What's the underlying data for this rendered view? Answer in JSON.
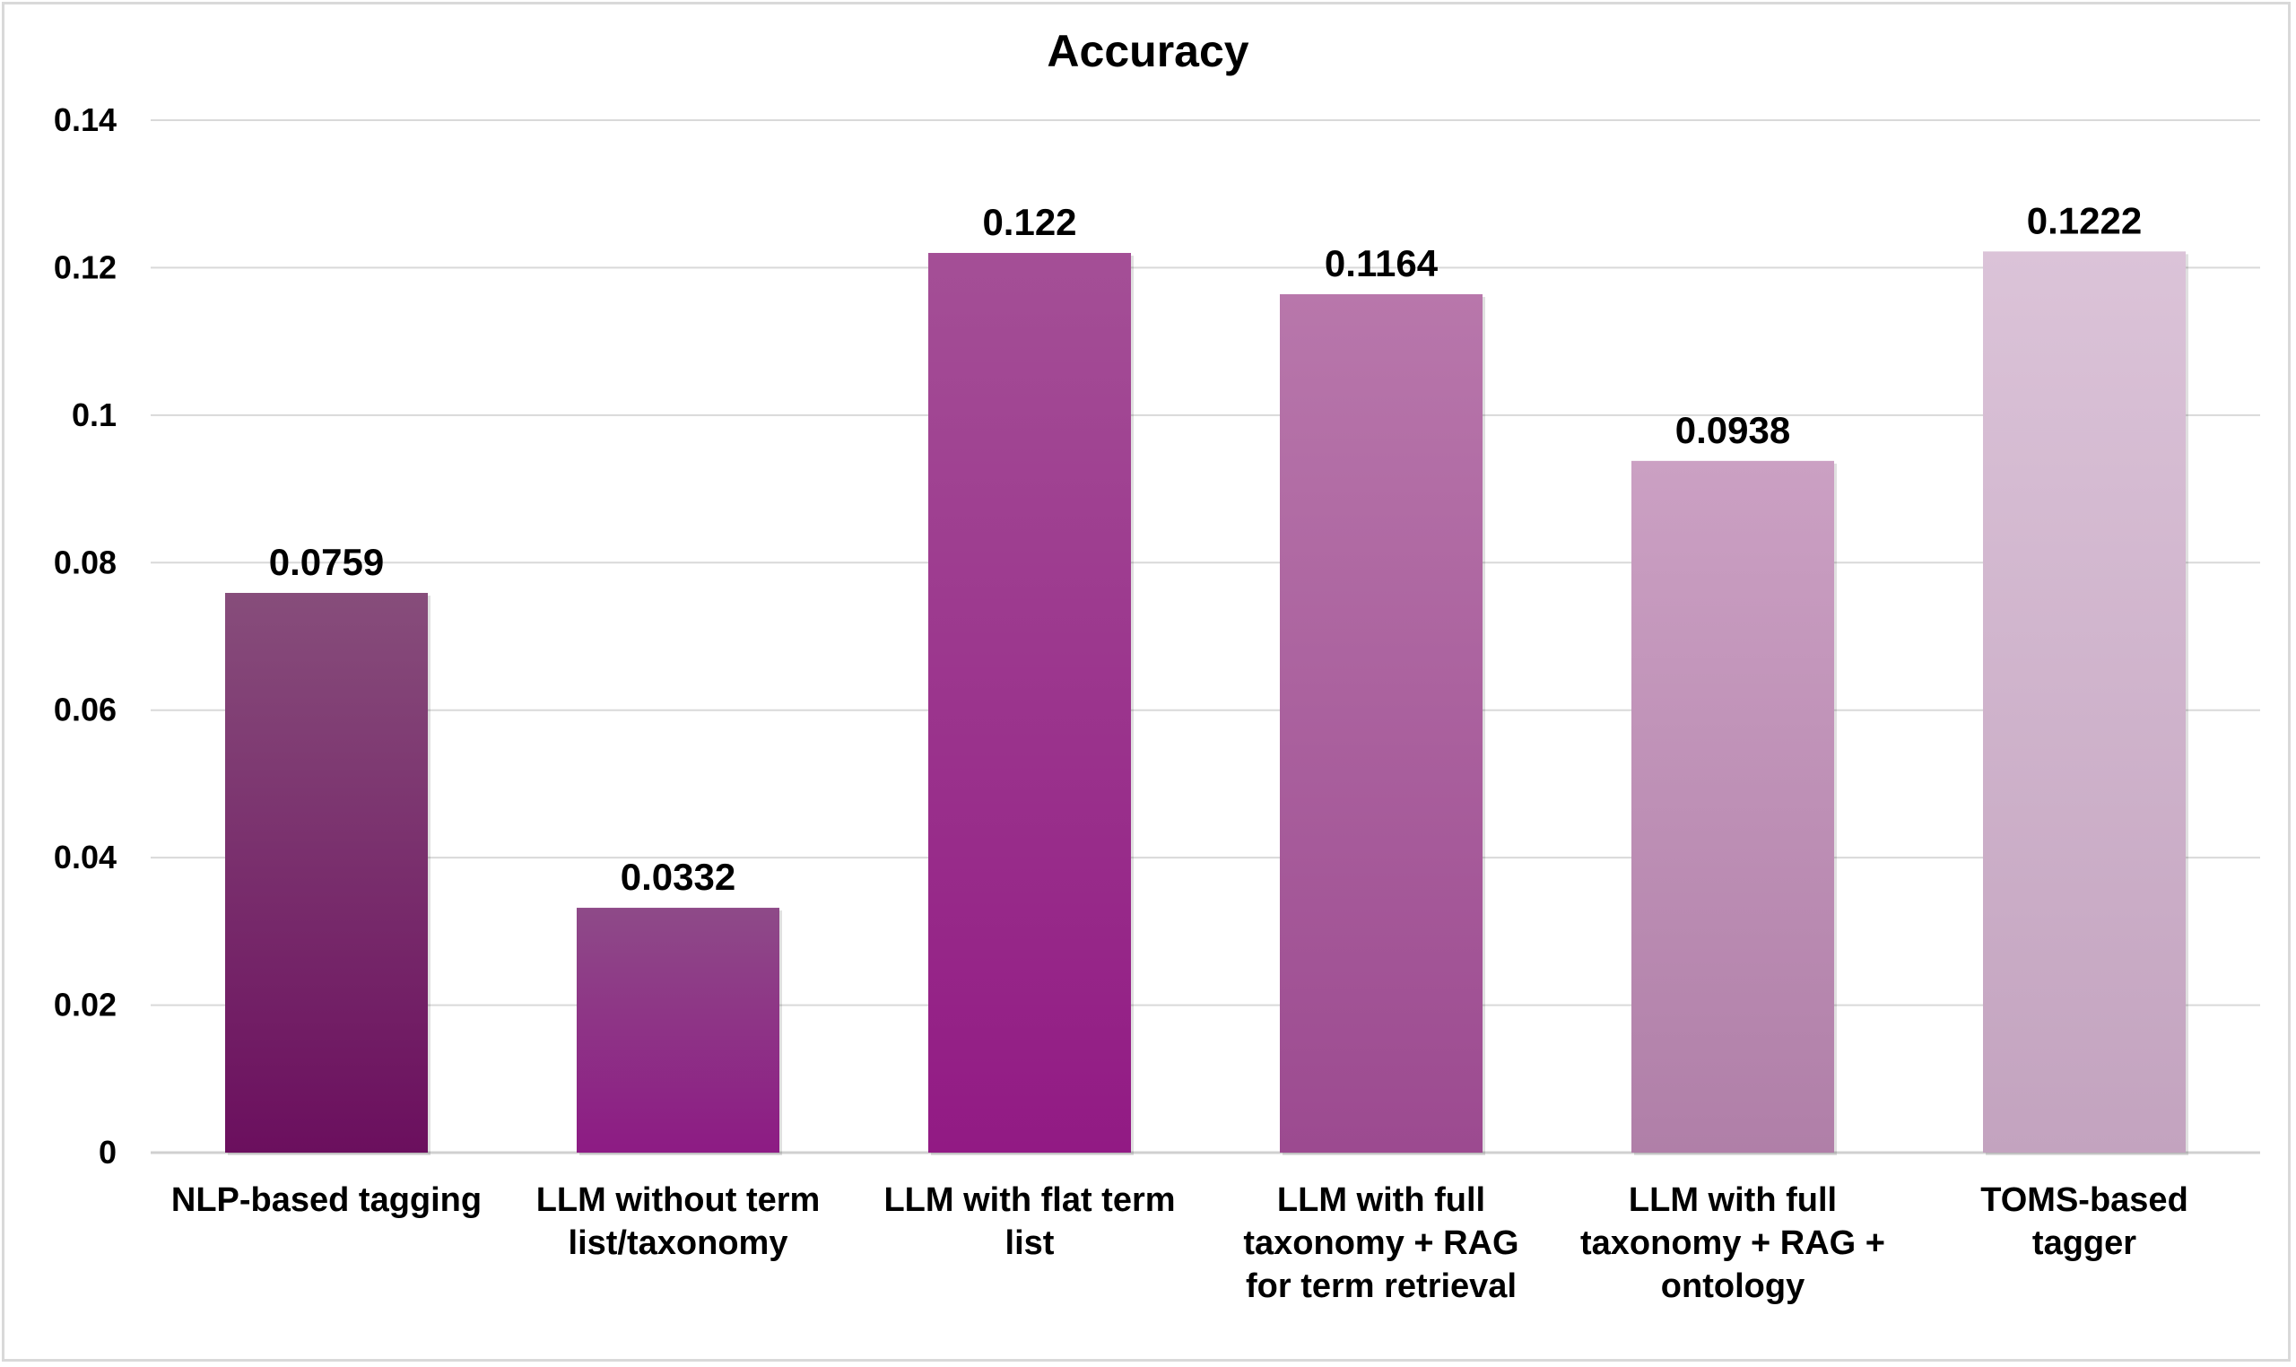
{
  "chart_data": {
    "type": "bar",
    "title": "Accuracy",
    "xlabel": "",
    "ylabel": "",
    "ylim": [
      0,
      0.14
    ],
    "yticks": [
      "0",
      "0.02",
      "0.04",
      "0.06",
      "0.08",
      "0.1",
      "0.12",
      "0.14"
    ],
    "grid": true,
    "categories": [
      "NLP-based tagging",
      "LLM without term list/taxonomy",
      "LLM with flat term list",
      "LLM with full taxonomy + RAG for term retrieval",
      "LLM with full taxonomy + RAG + ontology",
      "TOMS-based tagger"
    ],
    "category_lines": [
      [
        "NLP-based tagging"
      ],
      [
        "LLM without term",
        "list/taxonomy"
      ],
      [
        "LLM with flat term",
        "list"
      ],
      [
        "LLM with full",
        "taxonomy + RAG",
        "for term retrieval"
      ],
      [
        "LLM with full",
        "taxonomy + RAG +",
        "ontology"
      ],
      [
        "TOMS-based",
        "tagger"
      ]
    ],
    "values": [
      0.0759,
      0.0332,
      0.122,
      0.1164,
      0.0938,
      0.1222
    ],
    "data_labels": [
      "0.0759",
      "0.0332",
      "0.122",
      "0.1164",
      "0.0938",
      "0.1222"
    ],
    "bar_colors": [
      [
        "#874d7b",
        "#6b0f5e"
      ],
      [
        "#8e4a88",
        "#8d1b84"
      ],
      [
        "#a44f96",
        "#921a84"
      ],
      [
        "#b877ab",
        "#9c4a90"
      ],
      [
        "#cba0c3",
        "#b07fa8"
      ],
      [
        "#dbc3d8",
        "#c3a3bf"
      ]
    ],
    "gridline_color": "#d9d9d9"
  }
}
